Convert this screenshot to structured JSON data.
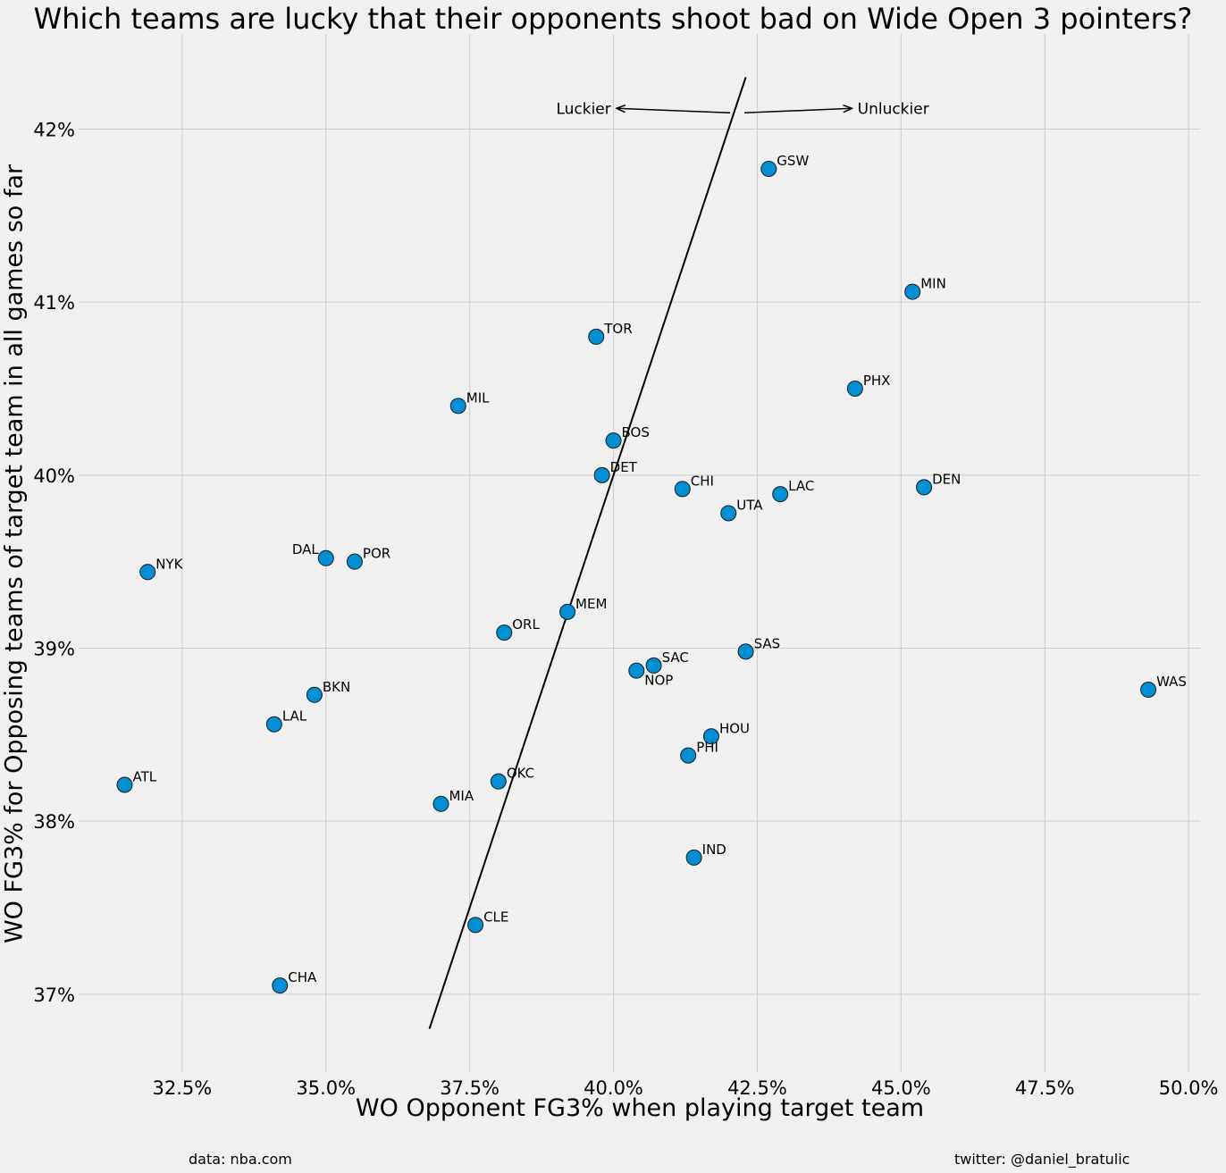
{
  "footer": {
    "source": "data: nba.com",
    "credit": "twitter: @daniel_bratulic"
  },
  "colors": {
    "background": "#f0f0f0",
    "grid": "#cbcbcb",
    "marker_fill": "#008fd5",
    "marker_edge": "#1a1a1a",
    "trend_line": "#000000"
  },
  "chart_data": {
    "type": "scatter",
    "title": "Which teams are lucky that their opponents shoot bad on Wide Open 3 pointers?",
    "xlabel": "WO Opponent FG3% when playing target team",
    "ylabel": "WO FG3% for Opposing teams of target team in all games so far",
    "xlim": [
      30.7,
      50.2
    ],
    "ylim": [
      36.55,
      42.55
    ],
    "x_ticks": [
      32.5,
      35.0,
      37.5,
      40.0,
      42.5,
      45.0,
      47.5,
      50.0
    ],
    "x_tick_labels": [
      "32.5%",
      "35.0%",
      "37.5%",
      "40.0%",
      "42.5%",
      "45.0%",
      "47.5%",
      "50.0%"
    ],
    "y_ticks": [
      37,
      38,
      39,
      40,
      41,
      42
    ],
    "y_tick_labels": [
      "37%",
      "38%",
      "39%",
      "40%",
      "41%",
      "42%"
    ],
    "grid": true,
    "trend_line": {
      "x": [
        36.8,
        42.3
      ],
      "y": [
        36.8,
        42.3
      ]
    },
    "annotations": [
      {
        "text": "Luckier",
        "direction": "left",
        "x": 40.05,
        "y": 42.12
      },
      {
        "text": "Unluckier",
        "direction": "right",
        "x": 44.15,
        "y": 42.12
      }
    ],
    "points": [
      {
        "team": "GSW",
        "x": 42.7,
        "y": 41.77
      },
      {
        "team": "MIN",
        "x": 45.2,
        "y": 41.06
      },
      {
        "team": "TOR",
        "x": 39.7,
        "y": 40.8
      },
      {
        "team": "PHX",
        "x": 44.2,
        "y": 40.5
      },
      {
        "team": "MIL",
        "x": 37.3,
        "y": 40.4
      },
      {
        "team": "BOS",
        "x": 40.0,
        "y": 40.2
      },
      {
        "team": "DET",
        "x": 39.8,
        "y": 40.0
      },
      {
        "team": "CHI",
        "x": 41.2,
        "y": 39.92
      },
      {
        "team": "DEN",
        "x": 45.4,
        "y": 39.93
      },
      {
        "team": "LAC",
        "x": 42.9,
        "y": 39.89
      },
      {
        "team": "UTA",
        "x": 42.0,
        "y": 39.78
      },
      {
        "team": "DAL",
        "x": 35.0,
        "y": 39.52
      },
      {
        "team": "POR",
        "x": 35.5,
        "y": 39.5
      },
      {
        "team": "NYK",
        "x": 31.9,
        "y": 39.44
      },
      {
        "team": "MEM",
        "x": 39.2,
        "y": 39.21
      },
      {
        "team": "ORL",
        "x": 38.1,
        "y": 39.09
      },
      {
        "team": "SAS",
        "x": 42.3,
        "y": 38.98
      },
      {
        "team": "SAC",
        "x": 40.7,
        "y": 38.9
      },
      {
        "team": "NOP",
        "x": 40.4,
        "y": 38.87
      },
      {
        "team": "WAS",
        "x": 49.3,
        "y": 38.76
      },
      {
        "team": "BKN",
        "x": 34.8,
        "y": 38.73
      },
      {
        "team": "LAL",
        "x": 34.1,
        "y": 38.56
      },
      {
        "team": "HOU",
        "x": 41.7,
        "y": 38.49
      },
      {
        "team": "PHI",
        "x": 41.3,
        "y": 38.38
      },
      {
        "team": "OKC",
        "x": 38.0,
        "y": 38.23
      },
      {
        "team": "ATL",
        "x": 31.5,
        "y": 38.21
      },
      {
        "team": "MIA",
        "x": 37.0,
        "y": 38.1
      },
      {
        "team": "IND",
        "x": 41.4,
        "y": 37.79
      },
      {
        "team": "CLE",
        "x": 37.6,
        "y": 37.4
      },
      {
        "team": "CHA",
        "x": 34.2,
        "y": 37.05
      }
    ]
  }
}
